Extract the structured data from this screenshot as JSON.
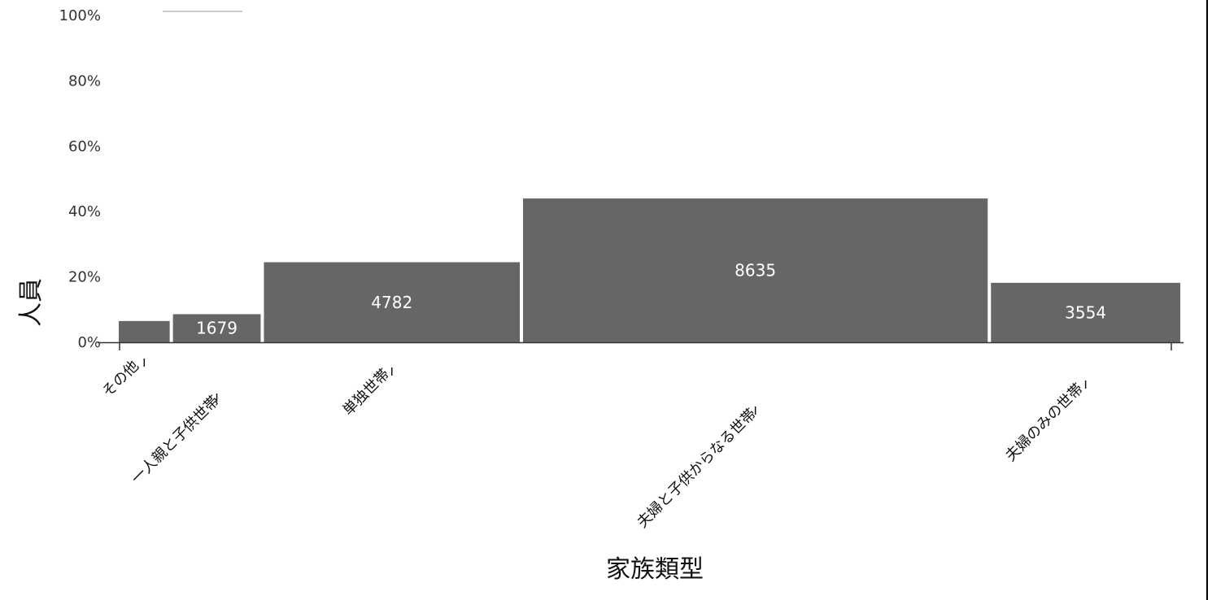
{
  "chart_data": {
    "type": "bar",
    "variant": "marimekko",
    "xlabel": "家族類型",
    "ylabel": "人員",
    "y_ticks": [
      "0%",
      "20%",
      "40%",
      "60%",
      "80%",
      "100%"
    ],
    "ylim": [
      0,
      100
    ],
    "grid": false,
    "categories": [
      "その他",
      "一人親と子供世帯",
      "単独世帯",
      "夫婦と子供からなる世帯",
      "夫婦のみの世帯"
    ],
    "values": [
      null,
      1679,
      4782,
      8635,
      3554
    ],
    "height_pct": [
      6.5,
      8.6,
      24.5,
      44.0,
      18.2
    ],
    "value_labels": [
      "",
      "1679",
      "4782",
      "8635",
      "3554"
    ],
    "legend_line": true,
    "colors": {
      "bar": "#666666",
      "bar_label": "#ffffff",
      "axis": "#333333",
      "text": "#111111"
    }
  }
}
